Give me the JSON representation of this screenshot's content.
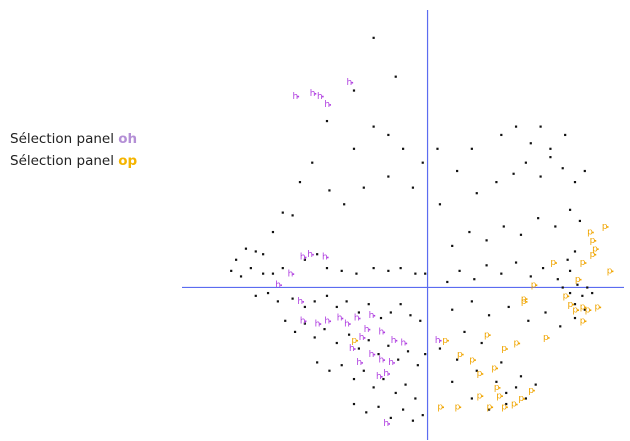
{
  "legend": {
    "line1_prefix": "Sélection panel ",
    "line1_key": "oh",
    "line2_prefix": "Sélection panel ",
    "line2_key": "op"
  },
  "colors": {
    "axis": "#5b6cf0",
    "point": "#111111",
    "oh": "#b48fd6",
    "op": "#f4b400",
    "oh_marker": "#b040e0",
    "op_marker": "#f0a500"
  },
  "chart_data": {
    "type": "scatter",
    "title": "",
    "xlabel": "",
    "ylabel": "",
    "xlim": [
      -1.0,
      0.8
    ],
    "ylim": [
      -0.55,
      1.0
    ],
    "grid": false,
    "axes_crossing": [
      0,
      0
    ],
    "series": [
      {
        "name": "",
        "marker": ".",
        "points": [
          [
            -0.22,
            0.9
          ],
          [
            -0.13,
            0.76
          ],
          [
            -0.3,
            0.71
          ],
          [
            -0.41,
            0.6
          ],
          [
            -0.3,
            0.5
          ],
          [
            -0.22,
            0.58
          ],
          [
            -0.16,
            0.55
          ],
          [
            -0.1,
            0.5
          ],
          [
            -0.02,
            0.45
          ],
          [
            0.04,
            0.5
          ],
          [
            -0.06,
            0.36
          ],
          [
            -0.16,
            0.4
          ],
          [
            -0.26,
            0.36
          ],
          [
            -0.34,
            0.3
          ],
          [
            -0.4,
            0.35
          ],
          [
            -0.47,
            0.45
          ],
          [
            -0.52,
            0.38
          ],
          [
            -0.55,
            0.26
          ],
          [
            -0.59,
            0.27
          ],
          [
            -0.63,
            0.2
          ],
          [
            -0.67,
            0.12
          ],
          [
            -0.7,
            0.13
          ],
          [
            -0.74,
            0.14
          ],
          [
            -0.78,
            0.1
          ],
          [
            -0.72,
            0.07
          ],
          [
            -0.8,
            0.06
          ],
          [
            -0.76,
            0.04
          ],
          [
            -0.67,
            0.05
          ],
          [
            -0.63,
            0.05
          ],
          [
            -0.59,
            0.07
          ],
          [
            -0.5,
            0.1
          ],
          [
            -0.45,
            0.12
          ],
          [
            -0.41,
            0.07
          ],
          [
            -0.35,
            0.06
          ],
          [
            -0.29,
            0.05
          ],
          [
            -0.22,
            0.07
          ],
          [
            -0.16,
            0.06
          ],
          [
            -0.11,
            0.07
          ],
          [
            -0.05,
            0.05
          ],
          [
            -0.01,
            0.05
          ],
          [
            -0.7,
            -0.03
          ],
          [
            -0.65,
            -0.02
          ],
          [
            -0.61,
            -0.05
          ],
          [
            -0.55,
            -0.04
          ],
          [
            -0.5,
            -0.07
          ],
          [
            -0.46,
            -0.05
          ],
          [
            -0.41,
            -0.03
          ],
          [
            -0.37,
            -0.07
          ],
          [
            -0.33,
            -0.05
          ],
          [
            -0.28,
            -0.09
          ],
          [
            -0.24,
            -0.06
          ],
          [
            -0.19,
            -0.11
          ],
          [
            -0.15,
            -0.09
          ],
          [
            -0.11,
            -0.06
          ],
          [
            -0.07,
            -0.1
          ],
          [
            -0.03,
            -0.12
          ],
          [
            -0.58,
            -0.12
          ],
          [
            -0.54,
            -0.16
          ],
          [
            -0.5,
            -0.13
          ],
          [
            -0.46,
            -0.18
          ],
          [
            -0.42,
            -0.15
          ],
          [
            -0.37,
            -0.2
          ],
          [
            -0.32,
            -0.17
          ],
          [
            -0.28,
            -0.22
          ],
          [
            -0.24,
            -0.19
          ],
          [
            -0.2,
            -0.24
          ],
          [
            -0.16,
            -0.21
          ],
          [
            -0.12,
            -0.26
          ],
          [
            -0.08,
            -0.23
          ],
          [
            -0.04,
            -0.28
          ],
          [
            -0.01,
            -0.24
          ],
          [
            -0.45,
            -0.27
          ],
          [
            -0.4,
            -0.3
          ],
          [
            -0.35,
            -0.28
          ],
          [
            -0.3,
            -0.33
          ],
          [
            -0.26,
            -0.3
          ],
          [
            -0.22,
            -0.36
          ],
          [
            -0.18,
            -0.33
          ],
          [
            -0.13,
            -0.38
          ],
          [
            -0.09,
            -0.35
          ],
          [
            -0.05,
            -0.4
          ],
          [
            -0.3,
            -0.42
          ],
          [
            -0.25,
            -0.45
          ],
          [
            -0.2,
            -0.43
          ],
          [
            -0.15,
            -0.47
          ],
          [
            -0.1,
            -0.44
          ],
          [
            -0.06,
            -0.48
          ],
          [
            -0.02,
            -0.46
          ],
          [
            0.08,
            0.02
          ],
          [
            0.13,
            0.06
          ],
          [
            0.19,
            0.03
          ],
          [
            0.24,
            0.08
          ],
          [
            0.3,
            0.05
          ],
          [
            0.36,
            0.09
          ],
          [
            0.42,
            0.04
          ],
          [
            0.47,
            0.07
          ],
          [
            0.53,
            0.03
          ],
          [
            0.58,
            0.06
          ],
          [
            0.1,
            0.15
          ],
          [
            0.17,
            0.2
          ],
          [
            0.24,
            0.17
          ],
          [
            0.31,
            0.22
          ],
          [
            0.38,
            0.19
          ],
          [
            0.45,
            0.25
          ],
          [
            0.52,
            0.22
          ],
          [
            0.58,
            0.28
          ],
          [
            0.62,
            0.24
          ],
          [
            0.2,
            0.34
          ],
          [
            0.28,
            0.38
          ],
          [
            0.35,
            0.41
          ],
          [
            0.4,
            0.45
          ],
          [
            0.46,
            0.4
          ],
          [
            0.5,
            0.47
          ],
          [
            0.55,
            0.43
          ],
          [
            0.6,
            0.38
          ],
          [
            0.64,
            0.42
          ],
          [
            0.3,
            0.55
          ],
          [
            0.36,
            0.58
          ],
          [
            0.42,
            0.52
          ],
          [
            0.46,
            0.58
          ],
          [
            0.5,
            0.5
          ],
          [
            0.56,
            0.55
          ],
          [
            0.18,
            0.5
          ],
          [
            0.12,
            0.42
          ],
          [
            0.05,
            0.3
          ],
          [
            0.55,
            0.0
          ],
          [
            0.58,
            -0.02
          ],
          [
            0.61,
            0.01
          ],
          [
            0.63,
            -0.03
          ],
          [
            0.65,
            0.0
          ],
          [
            0.67,
            -0.02
          ],
          [
            0.6,
            -0.06
          ],
          [
            0.64,
            -0.08
          ],
          [
            0.57,
            0.1
          ],
          [
            0.6,
            0.13
          ],
          [
            0.1,
            -0.08
          ],
          [
            0.18,
            -0.05
          ],
          [
            0.25,
            -0.1
          ],
          [
            0.33,
            -0.07
          ],
          [
            0.41,
            -0.12
          ],
          [
            0.48,
            -0.09
          ],
          [
            0.54,
            -0.14
          ],
          [
            0.6,
            -0.11
          ],
          [
            0.05,
            -0.22
          ],
          [
            0.12,
            -0.26
          ],
          [
            0.2,
            -0.3
          ],
          [
            0.28,
            -0.34
          ],
          [
            0.32,
            -0.38
          ],
          [
            0.36,
            -0.36
          ],
          [
            0.4,
            -0.4
          ],
          [
            0.44,
            -0.35
          ],
          [
            0.38,
            -0.32
          ],
          [
            0.3,
            -0.27
          ],
          [
            0.22,
            -0.2
          ],
          [
            0.15,
            -0.16
          ],
          [
            0.1,
            -0.34
          ],
          [
            0.18,
            -0.4
          ],
          [
            0.25,
            -0.44
          ],
          [
            0.32,
            -0.42
          ]
        ]
      },
      {
        "name": "",
        "marker": "h",
        "points": [
          [
            -0.55,
            0.68
          ],
          [
            -0.48,
            0.69
          ],
          [
            -0.45,
            0.68
          ],
          [
            -0.33,
            0.73
          ],
          [
            -0.42,
            0.65
          ],
          [
            -0.49,
            0.11
          ],
          [
            -0.52,
            0.1
          ],
          [
            -0.43,
            0.1
          ],
          [
            -0.57,
            0.04
          ],
          [
            -0.62,
            0.0
          ],
          [
            -0.53,
            -0.06
          ],
          [
            -0.52,
            -0.13
          ],
          [
            -0.46,
            -0.14
          ],
          [
            -0.42,
            -0.13
          ],
          [
            -0.37,
            -0.12
          ],
          [
            -0.34,
            -0.14
          ],
          [
            -0.3,
            -0.12
          ],
          [
            -0.26,
            -0.16
          ],
          [
            -0.24,
            -0.11
          ],
          [
            -0.2,
            -0.17
          ],
          [
            -0.15,
            -0.2
          ],
          [
            -0.11,
            -0.21
          ],
          [
            -0.28,
            -0.19
          ],
          [
            -0.32,
            -0.23
          ],
          [
            -0.24,
            -0.25
          ],
          [
            -0.2,
            -0.27
          ],
          [
            -0.16,
            -0.28
          ],
          [
            -0.29,
            -0.28
          ],
          [
            -0.18,
            -0.32
          ],
          [
            -0.21,
            -0.33
          ],
          [
            0.03,
            -0.2
          ],
          [
            -0.18,
            -0.5
          ]
        ]
      },
      {
        "name": "",
        "marker": "p",
        "points": [
          [
            -0.31,
            -0.2
          ],
          [
            0.06,
            -0.2
          ],
          [
            0.23,
            -0.18
          ],
          [
            0.3,
            -0.23
          ],
          [
            0.35,
            -0.21
          ],
          [
            0.12,
            -0.25
          ],
          [
            0.17,
            -0.27
          ],
          [
            0.2,
            -0.32
          ],
          [
            0.26,
            -0.3
          ],
          [
            0.27,
            -0.37
          ],
          [
            0.2,
            -0.4
          ],
          [
            0.28,
            -0.4
          ],
          [
            0.3,
            -0.44
          ],
          [
            0.24,
            -0.44
          ],
          [
            0.34,
            -0.43
          ],
          [
            0.37,
            -0.41
          ],
          [
            0.41,
            -0.38
          ],
          [
            0.04,
            -0.44
          ],
          [
            0.11,
            -0.44
          ],
          [
            0.47,
            -0.19
          ],
          [
            0.38,
            -0.06
          ],
          [
            0.38,
            -0.05
          ],
          [
            0.42,
            0.0
          ],
          [
            0.5,
            0.08
          ],
          [
            0.55,
            -0.04
          ],
          [
            0.57,
            -0.07
          ],
          [
            0.59,
            -0.09
          ],
          [
            0.62,
            -0.08
          ],
          [
            0.64,
            -0.09
          ],
          [
            0.6,
            0.02
          ],
          [
            0.62,
            0.08
          ],
          [
            0.66,
            0.11
          ],
          [
            0.67,
            0.13
          ],
          [
            0.66,
            0.16
          ],
          [
            0.65,
            0.19
          ],
          [
            0.71,
            0.21
          ],
          [
            0.73,
            0.05
          ],
          [
            0.68,
            -0.08
          ],
          [
            0.62,
            -0.13
          ]
        ]
      }
    ]
  }
}
